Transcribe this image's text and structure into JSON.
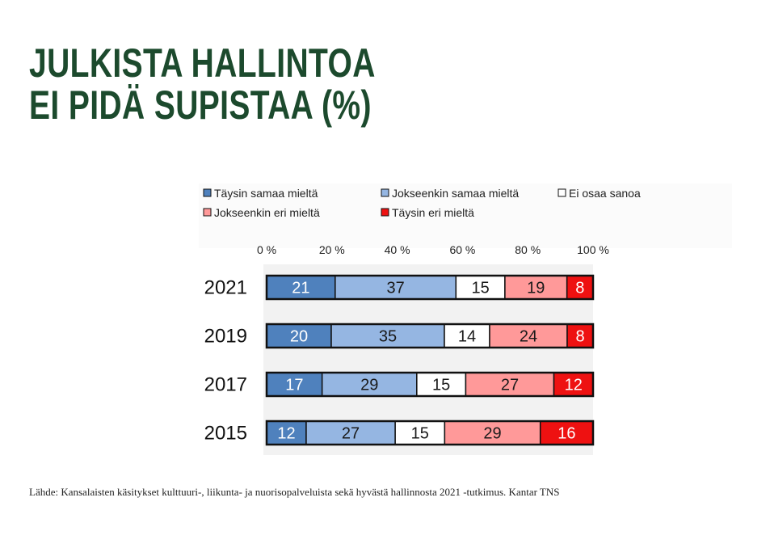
{
  "title": {
    "line1": "JULKISTA HALLINTOA",
    "line2": "EI PIDÄ SUPISTAA (%)"
  },
  "source": "Lähde: Kansalaisten käsitykset kulttuuri-, liikunta- ja nuorisopalveluista sekä hyvästä hallinnosta 2021 -tutkimus. Kantar TNS",
  "chart_data": {
    "type": "bar",
    "orientation": "horizontal",
    "stacked": true,
    "normalized": "percent",
    "categories": [
      "2021",
      "2019",
      "2017",
      "2015"
    ],
    "series": [
      {
        "name": "Täysin samaa mieltä",
        "values": [
          21,
          20,
          17,
          12
        ],
        "color": "#4f81bd",
        "label_color": "#ffffff"
      },
      {
        "name": "Jokseenkin samaa mieltä",
        "values": [
          37,
          35,
          29,
          27
        ],
        "color": "#95b6e2",
        "label_color": "#1a1a1a"
      },
      {
        "name": "Ei osaa sanoa",
        "values": [
          15,
          14,
          15,
          15
        ],
        "color": "#ffffff",
        "label_color": "#1a1a1a"
      },
      {
        "name": "Jokseenkin eri mieltä",
        "values": [
          19,
          24,
          27,
          29
        ],
        "color": "#ff9999",
        "label_color": "#1a1a1a"
      },
      {
        "name": "Täysin eri mieltä",
        "values": [
          8,
          8,
          12,
          16
        ],
        "color": "#ee1111",
        "label_color": "#ffffff"
      }
    ],
    "x_ticks": [
      "0 %",
      "20 %",
      "40 %",
      "60 %",
      "80 %",
      "100 %"
    ],
    "xlim": [
      0,
      100
    ],
    "grid": false,
    "legend_position": "top"
  }
}
